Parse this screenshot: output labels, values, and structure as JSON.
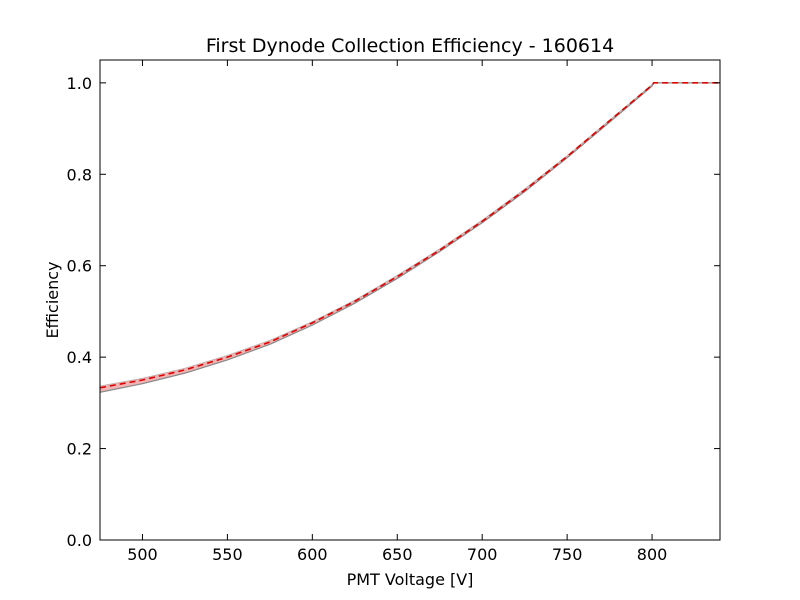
{
  "chart_data": {
    "type": "line",
    "title": "First Dynode Collection Efficiency - 160614",
    "xlabel": "PMT Voltage [V]",
    "ylabel": "Efficiency",
    "xlim": [
      475,
      840
    ],
    "ylim": [
      0.0,
      1.05
    ],
    "xticks": [
      500,
      550,
      600,
      650,
      700,
      750,
      800
    ],
    "yticks": [
      0.0,
      0.2,
      0.4,
      0.6,
      0.8,
      1.0
    ],
    "xtick_labels": [
      "500",
      "550",
      "600",
      "650",
      "700",
      "750",
      "800"
    ],
    "ytick_labels": [
      "0.0",
      "0.2",
      "0.4",
      "0.6",
      "0.8",
      "1.0"
    ],
    "grid": false,
    "legend": "none",
    "series": [
      {
        "style": "dashed",
        "color": "#dd0000",
        "x": [
          475,
          500,
          525,
          550,
          575,
          600,
          625,
          650,
          675,
          700,
          725,
          750,
          775,
          800,
          801,
          840
        ],
        "y": [
          0.333,
          0.35,
          0.372,
          0.4,
          0.433,
          0.475,
          0.522,
          0.576,
          0.634,
          0.697,
          0.765,
          0.839,
          0.917,
          0.995,
          1.0,
          1.0
        ]
      }
    ],
    "band": {
      "color": "#e89a9a",
      "edge_color": "#888888",
      "x": [
        475,
        500,
        525,
        550,
        575,
        600,
        625,
        650,
        675,
        700,
        725,
        750,
        775,
        800,
        801,
        840
      ],
      "lower": [
        0.323,
        0.342,
        0.365,
        0.394,
        0.428,
        0.47,
        0.518,
        0.572,
        0.631,
        0.694,
        0.762,
        0.836,
        0.914,
        0.993,
        1.0,
        1.0
      ],
      "upper": [
        0.337,
        0.354,
        0.376,
        0.404,
        0.437,
        0.478,
        0.525,
        0.579,
        0.637,
        0.7,
        0.768,
        0.841,
        0.919,
        0.997,
        1.0,
        1.0
      ]
    }
  }
}
